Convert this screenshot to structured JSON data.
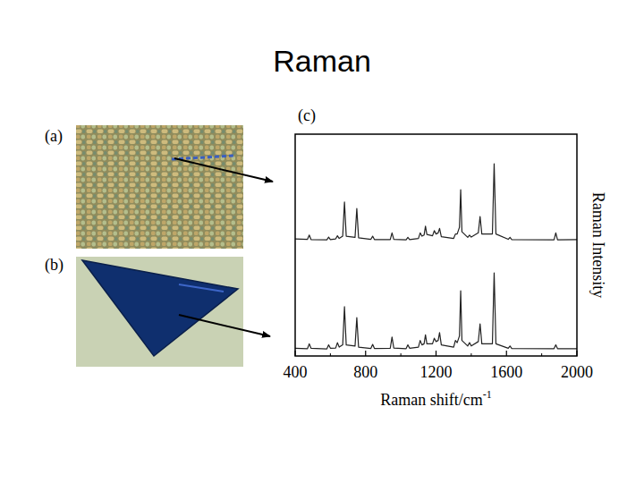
{
  "title": "Raman",
  "panels": [
    {
      "label": "(a)"
    },
    {
      "label": "(b)"
    }
  ],
  "chart_data": {
    "type": "line",
    "panel_label": "(c)",
    "x_label": "Raman shift/cm-1",
    "y_label": "Raman Intensity",
    "x": [
      400,
      470,
      480,
      490,
      580,
      590,
      600,
      630,
      640,
      650,
      670,
      680,
      690,
      740,
      750,
      760,
      830,
      840,
      850,
      940,
      950,
      960,
      1030,
      1040,
      1050,
      1100,
      1110,
      1120,
      1132,
      1140,
      1148,
      1180,
      1190,
      1200,
      1212,
      1220,
      1230,
      1300,
      1310,
      1320,
      1333,
      1340,
      1347,
      1380,
      1390,
      1400,
      1440,
      1450,
      1460,
      1520,
      1530,
      1540,
      1610,
      1620,
      1630,
      1870,
      1880,
      1890,
      2000
    ],
    "series": [
      {
        "color": "#222222",
        "values": [
          52.8,
          52.6,
          54.5,
          52.5,
          52.4,
          53.6,
          52.5,
          52.8,
          54.2,
          53.0,
          54,
          69.4,
          54,
          53.5,
          66.5,
          53.3,
          52.6,
          54,
          52.5,
          52.5,
          55.5,
          52.6,
          52.4,
          53.5,
          52.5,
          53,
          55.5,
          54,
          54.5,
          58.5,
          54.8,
          54.2,
          56.5,
          55,
          55.5,
          57.5,
          53.8,
          53,
          55,
          55,
          58,
          75,
          56,
          53.5,
          54.5,
          53.6,
          55.5,
          62.9,
          55,
          55,
          86.7,
          55,
          52.6,
          53.5,
          52.5,
          52.4,
          55.5,
          52.4,
          52.5
        ]
      },
      {
        "color": "#222222",
        "values": [
          3.5,
          3.3,
          5.5,
          3.5,
          3.2,
          5,
          3.5,
          3.6,
          6,
          4,
          5,
          22.2,
          5,
          4.5,
          17.3,
          4,
          3.4,
          5.2,
          3.4,
          3.5,
          8.5,
          3.6,
          3.3,
          5,
          3.5,
          4,
          7,
          5,
          5.5,
          9.5,
          5.5,
          5.5,
          8,
          6.5,
          7,
          10.5,
          5,
          4,
          7,
          6,
          9,
          29.4,
          7,
          4.5,
          6,
          4.5,
          6.5,
          14.5,
          5.5,
          5.5,
          37.5,
          5.5,
          3.5,
          4.5,
          3.4,
          3.3,
          5,
          3.3,
          3.3
        ]
      }
    ],
    "xlim": [
      400,
      2000
    ],
    "ylim": [
      0,
      100
    ],
    "xticks": [
      400,
      800,
      1200,
      1600,
      2000
    ],
    "tick_labels": "x",
    "grid": false
  }
}
